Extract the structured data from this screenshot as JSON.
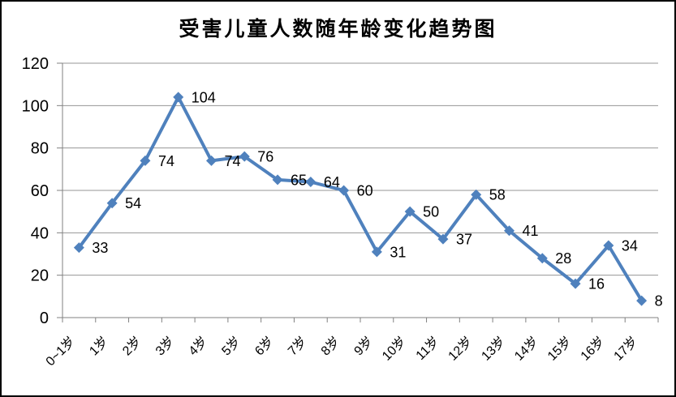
{
  "chart_data": {
    "type": "line",
    "title": "受害儿童人数随年龄变化趋势图",
    "categories": [
      "0~1岁",
      "1岁",
      "2岁",
      "3岁",
      "4岁",
      "5岁",
      "6岁",
      "7岁",
      "8岁",
      "9岁",
      "10岁",
      "11岁",
      "12岁",
      "13岁",
      "14岁",
      "15岁",
      "16岁",
      "17岁"
    ],
    "series": [
      {
        "values": [
          33,
          54,
          74,
          104,
          74,
          76,
          65,
          64,
          60,
          31,
          50,
          37,
          58,
          41,
          28,
          16,
          34,
          8
        ],
        "color": "#4F81BD",
        "marker": "diamond"
      }
    ],
    "data_labels": [
      33,
      54,
      74,
      104,
      74,
      76,
      65,
      64,
      60,
      31,
      50,
      37,
      58,
      41,
      28,
      16,
      34,
      8
    ],
    "xlabel": "",
    "ylabel": "",
    "ylim": [
      0,
      120
    ],
    "yticks": [
      0,
      20,
      40,
      60,
      80,
      100,
      120
    ],
    "grid": true,
    "legend": "none",
    "colors": {
      "line": "#4F81BD",
      "gridline": "#969696",
      "axis": "#808080",
      "text": "#000000",
      "background": "#ffffff",
      "frame_border": "#000000"
    }
  }
}
